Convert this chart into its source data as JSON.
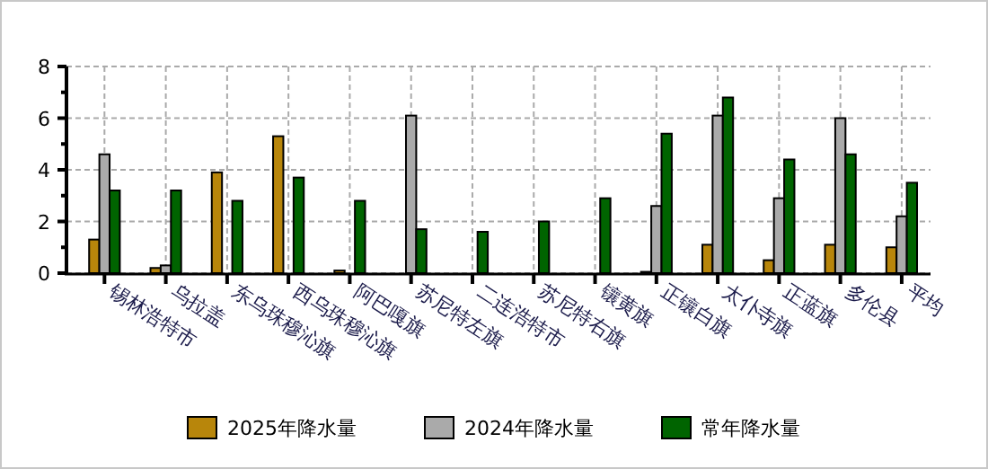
{
  "chart_data": {
    "type": "bar",
    "categories": [
      "锡林浩特市",
      "乌拉盖",
      "东乌珠穆沁旗",
      "西乌珠穆沁旗",
      "阿巴嘎旗",
      "苏尼特左旗",
      "二连浩特市",
      "苏尼特右旗",
      "镶黄旗",
      "正镶白旗",
      "太仆寺旗",
      "正蓝旗",
      "多伦县",
      "平均"
    ],
    "series": [
      {
        "name": "2025年降水量",
        "color": "#b8860b",
        "values": [
          1.3,
          0.2,
          3.9,
          5.3,
          0.1,
          null,
          null,
          null,
          null,
          0.05,
          1.1,
          0.5,
          1.1,
          1.0
        ]
      },
      {
        "name": "2024年降水量",
        "color": "#aaaaaa",
        "values": [
          4.6,
          0.3,
          null,
          null,
          null,
          6.1,
          null,
          null,
          null,
          2.6,
          6.1,
          2.9,
          6.0,
          2.2
        ]
      },
      {
        "name": "常年降水量",
        "color": "#006400",
        "values": [
          3.2,
          3.2,
          2.8,
          3.7,
          2.8,
          1.7,
          1.6,
          2.0,
          2.9,
          5.4,
          6.8,
          4.4,
          4.6,
          3.5
        ]
      }
    ],
    "ylim": [
      0,
      8
    ],
    "yticks": [
      0,
      {
        "value": 1,
        "label": null
      },
      2,
      {
        "value": 3,
        "label": null
      },
      4,
      {
        "value": 5,
        "label": null
      },
      6,
      {
        "value": 7,
        "label": null
      },
      8
    ],
    "grid": true,
    "legend": "bottom"
  }
}
